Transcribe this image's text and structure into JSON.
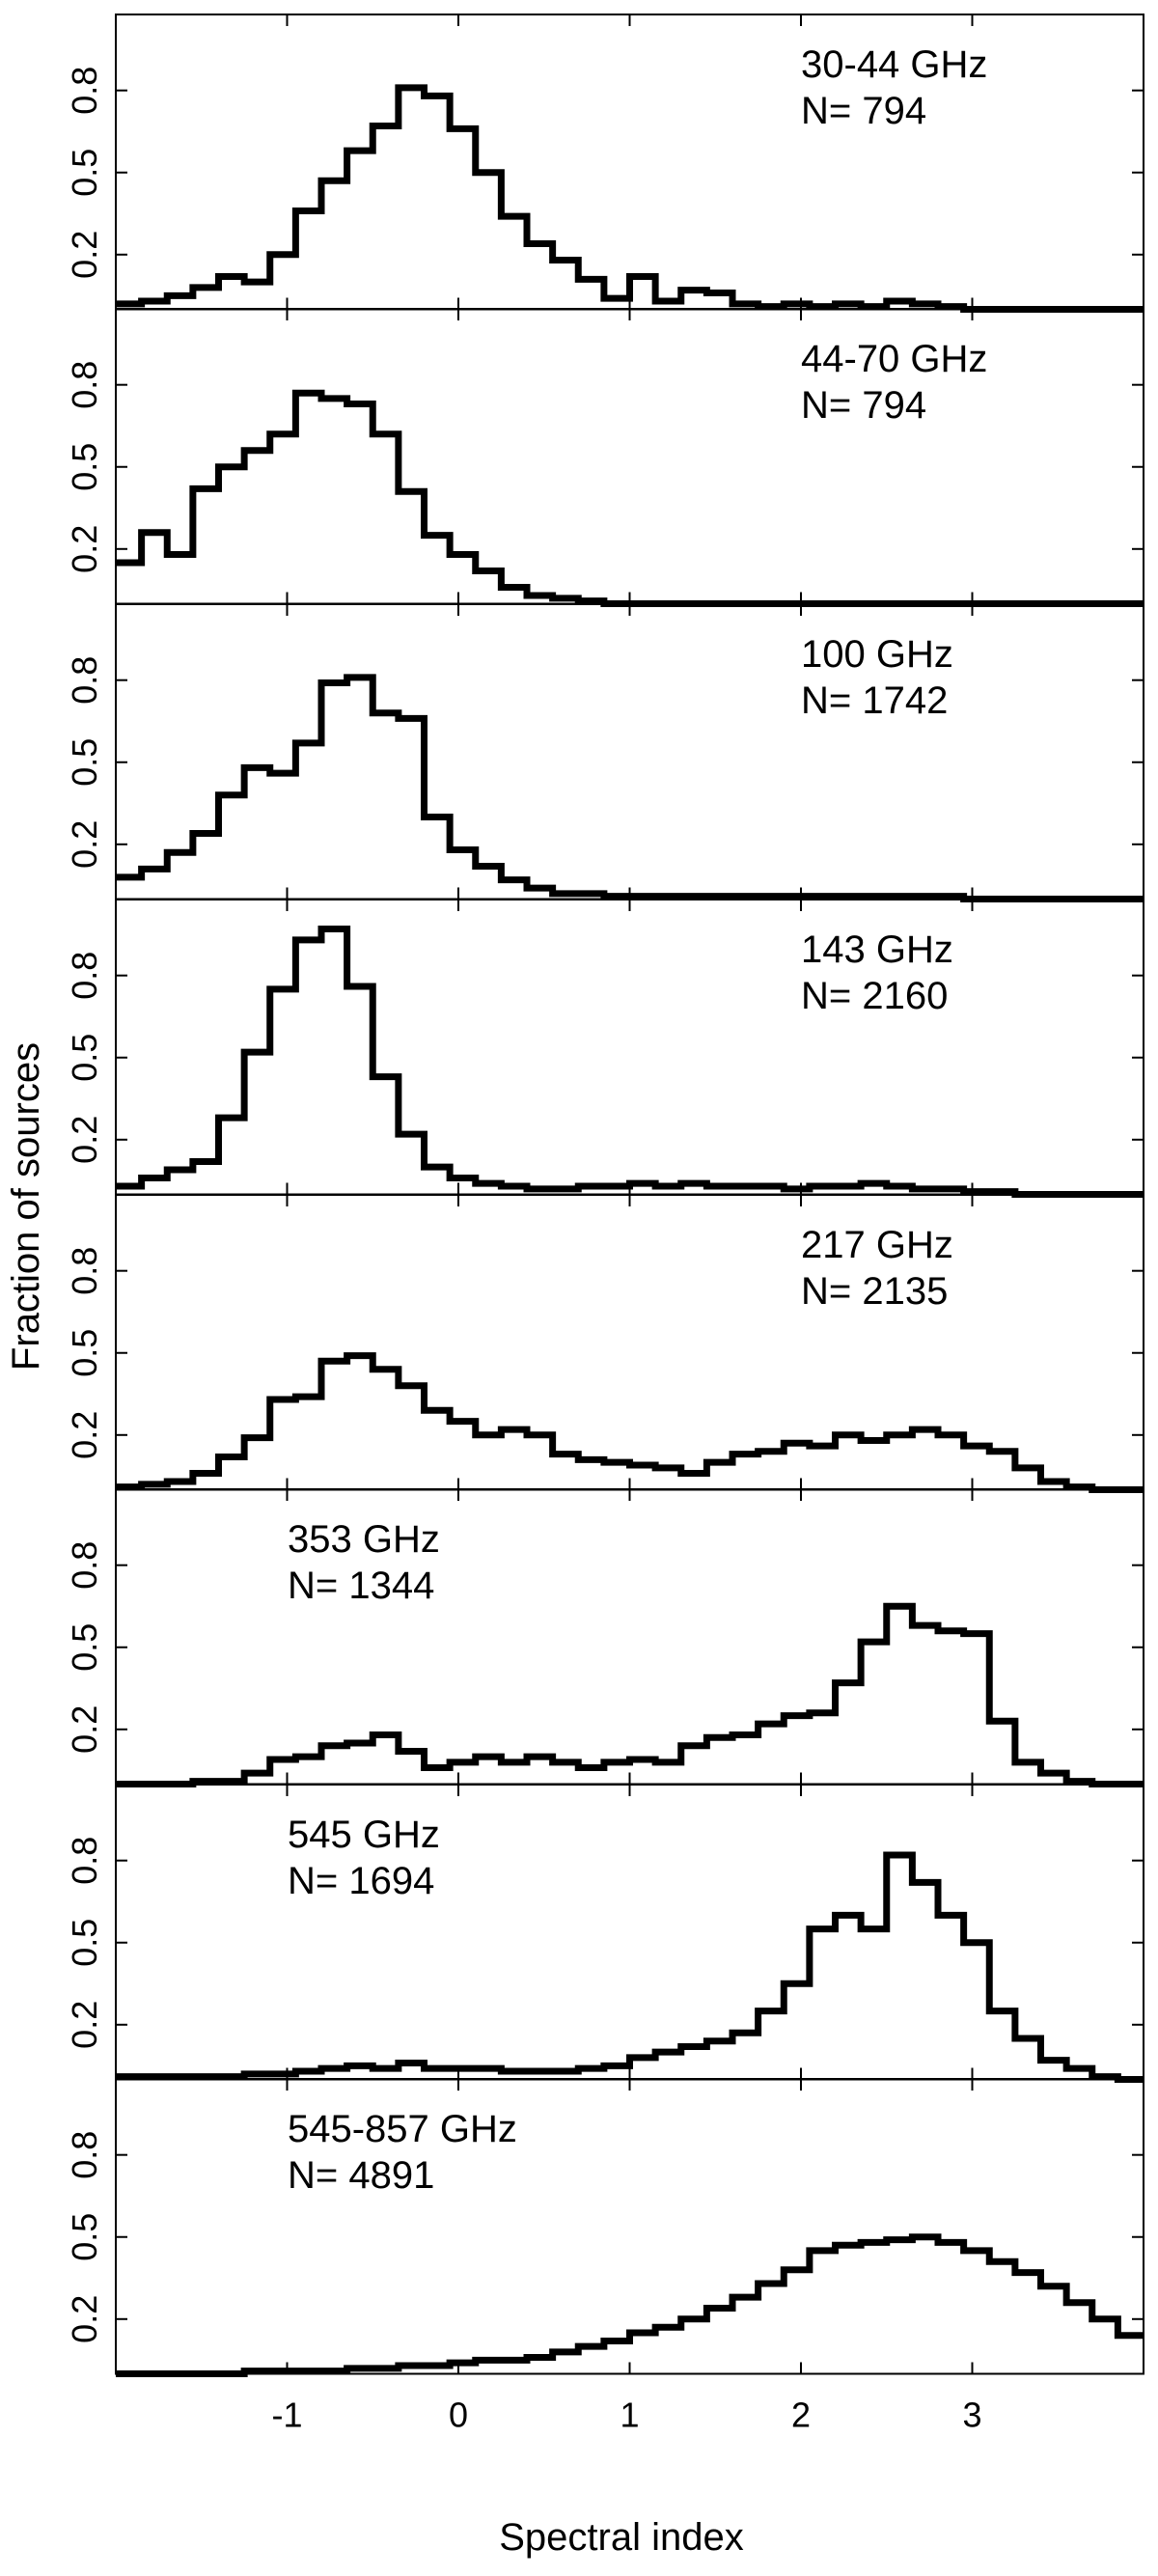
{
  "figure": {
    "ylabel": "Fraction of sources",
    "xlabel": "Spectral index"
  },
  "chart_data": {
    "type": "step",
    "xlim": [
      -2.0,
      4.0
    ],
    "ylim": [
      0,
      1.0
    ],
    "bin_width": 0.15,
    "bin_start": -2.0,
    "x_ticks": [
      -1,
      0,
      1,
      2,
      3
    ],
    "x_tick_labels": [
      "-1",
      "0",
      "1",
      "2",
      "3"
    ],
    "y_ticks": [
      0.2,
      0.5,
      0.8
    ],
    "y_tick_labels": [
      "0.2",
      "0.5",
      "0.8"
    ],
    "grid": false,
    "panels": [
      {
        "label_line1": "30-44 GHz",
        "label_line2": "N= 794",
        "label_position": "top-right",
        "values": [
          0.02,
          0.03,
          0.05,
          0.08,
          0.12,
          0.1,
          0.2,
          0.36,
          0.47,
          0.58,
          0.67,
          0.81,
          0.78,
          0.66,
          0.5,
          0.34,
          0.24,
          0.18,
          0.11,
          0.04,
          0.12,
          0.03,
          0.07,
          0.06,
          0.02,
          0.01,
          0.02,
          0.01,
          0.02,
          0.01,
          0.03,
          0.02,
          0.01,
          0.0,
          0.0,
          0.0,
          0.0,
          0.0,
          0.0,
          0.0
        ]
      },
      {
        "label_line1": "44-70 GHz",
        "label_line2": "N= 794",
        "label_position": "top-right",
        "values": [
          0.15,
          0.26,
          0.18,
          0.42,
          0.5,
          0.56,
          0.62,
          0.77,
          0.75,
          0.73,
          0.62,
          0.41,
          0.25,
          0.18,
          0.12,
          0.06,
          0.03,
          0.02,
          0.01,
          0.0,
          0.0,
          0.0,
          0.0,
          0.0,
          0.0,
          0.0,
          0.0,
          0.0,
          0.0,
          0.0,
          0.0,
          0.0,
          0.0,
          0.0,
          0.0,
          0.0,
          0.0,
          0.0,
          0.0,
          0.0
        ]
      },
      {
        "label_line1": "100 GHz",
        "label_line2": "N= 1742",
        "label_position": "top-right",
        "values": [
          0.08,
          0.11,
          0.17,
          0.24,
          0.38,
          0.48,
          0.46,
          0.57,
          0.79,
          0.81,
          0.68,
          0.66,
          0.3,
          0.18,
          0.12,
          0.07,
          0.04,
          0.02,
          0.02,
          0.01,
          0.01,
          0.01,
          0.01,
          0.01,
          0.01,
          0.01,
          0.01,
          0.01,
          0.01,
          0.01,
          0.01,
          0.01,
          0.01,
          0.0,
          0.0,
          0.0,
          0.0,
          0.0,
          0.0,
          0.0
        ]
      },
      {
        "label_line1": "143 GHz",
        "label_line2": "N= 2160",
        "label_position": "top-right",
        "values": [
          0.03,
          0.06,
          0.09,
          0.12,
          0.28,
          0.52,
          0.75,
          0.93,
          0.97,
          0.76,
          0.43,
          0.22,
          0.1,
          0.06,
          0.04,
          0.03,
          0.02,
          0.02,
          0.03,
          0.03,
          0.04,
          0.03,
          0.04,
          0.03,
          0.03,
          0.03,
          0.02,
          0.03,
          0.03,
          0.04,
          0.03,
          0.02,
          0.02,
          0.01,
          0.01,
          0.0,
          0.0,
          0.0,
          0.0,
          0.0
        ]
      },
      {
        "label_line1": "217 GHz",
        "label_line2": "N= 2135",
        "label_position": "top-right",
        "values": [
          0.01,
          0.02,
          0.03,
          0.06,
          0.12,
          0.19,
          0.33,
          0.34,
          0.47,
          0.49,
          0.44,
          0.38,
          0.29,
          0.25,
          0.2,
          0.22,
          0.2,
          0.13,
          0.11,
          0.1,
          0.09,
          0.08,
          0.06,
          0.1,
          0.13,
          0.14,
          0.17,
          0.16,
          0.2,
          0.18,
          0.2,
          0.22,
          0.2,
          0.16,
          0.14,
          0.08,
          0.03,
          0.01,
          0.0,
          0.0
        ]
      },
      {
        "label_line1": "353 GHz",
        "label_line2": "N= 1344",
        "label_position": "top-left",
        "values": [
          0.0,
          0.0,
          0.0,
          0.01,
          0.01,
          0.04,
          0.09,
          0.1,
          0.14,
          0.15,
          0.18,
          0.12,
          0.06,
          0.08,
          0.1,
          0.08,
          0.1,
          0.08,
          0.06,
          0.08,
          0.09,
          0.08,
          0.14,
          0.17,
          0.18,
          0.22,
          0.25,
          0.26,
          0.37,
          0.52,
          0.65,
          0.58,
          0.56,
          0.55,
          0.23,
          0.08,
          0.04,
          0.01,
          0.0,
          0.0
        ]
      },
      {
        "label_line1": "545 GHz",
        "label_line2": "N= 1694",
        "label_position": "top-left",
        "values": [
          0.01,
          0.01,
          0.01,
          0.01,
          0.01,
          0.02,
          0.02,
          0.03,
          0.04,
          0.05,
          0.04,
          0.06,
          0.04,
          0.04,
          0.04,
          0.03,
          0.03,
          0.03,
          0.04,
          0.05,
          0.08,
          0.1,
          0.12,
          0.14,
          0.17,
          0.25,
          0.35,
          0.55,
          0.6,
          0.55,
          0.82,
          0.72,
          0.6,
          0.5,
          0.25,
          0.15,
          0.07,
          0.04,
          0.01,
          0.0
        ]
      },
      {
        "label_line1": "545-857 GHz",
        "label_line2": "N= 4891",
        "label_position": "top-left",
        "values": [
          0.0,
          0.0,
          0.0,
          0.0,
          0.0,
          0.01,
          0.01,
          0.01,
          0.01,
          0.02,
          0.02,
          0.03,
          0.03,
          0.04,
          0.05,
          0.05,
          0.06,
          0.08,
          0.1,
          0.12,
          0.15,
          0.17,
          0.2,
          0.24,
          0.28,
          0.33,
          0.38,
          0.45,
          0.47,
          0.48,
          0.49,
          0.5,
          0.48,
          0.45,
          0.41,
          0.37,
          0.32,
          0.26,
          0.2,
          0.14
        ]
      }
    ]
  }
}
